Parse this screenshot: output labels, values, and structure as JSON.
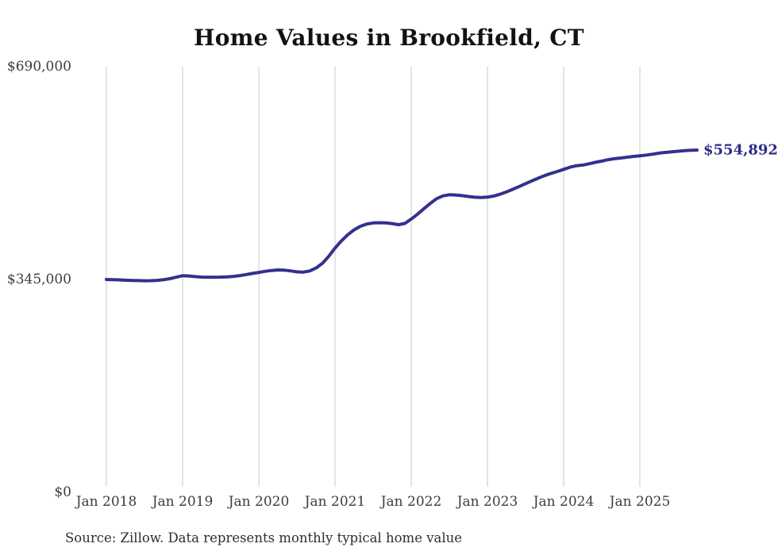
{
  "page": {
    "background_color": "#ffffff",
    "text_color": "#3d3d3d"
  },
  "chart_data": {
    "type": "line",
    "title": "Home Values in Brookfield, CT",
    "series_name": "Monthly typical home value",
    "x_unit": "month",
    "start_month": "2018-01",
    "end_month": "2025-10",
    "xlabel": "",
    "ylabel": "",
    "ylim": [
      0,
      690000
    ],
    "grid": "vertical-only",
    "legend": "none",
    "line_color": "#34308e",
    "gridline_color": "#c9c9c9",
    "end_label": "$554,892",
    "end_label_color": "#2d2b87",
    "end_value": 554892,
    "y_ticks": [
      {
        "label": "$0",
        "value": 0
      },
      {
        "label": "$345,000",
        "value": 345000
      },
      {
        "label": "$690,000",
        "value": 690000
      }
    ],
    "x_ticks": [
      {
        "label": "Jan 2018",
        "month_index": 0
      },
      {
        "label": "Jan 2019",
        "month_index": 12
      },
      {
        "label": "Jan 2020",
        "month_index": 24
      },
      {
        "label": "Jan 2021",
        "month_index": 36
      },
      {
        "label": "Jan 2022",
        "month_index": 48
      },
      {
        "label": "Jan 2023",
        "month_index": 60
      },
      {
        "label": "Jan 2024",
        "month_index": 72
      },
      {
        "label": "Jan 2025",
        "month_index": 84
      }
    ],
    "values": [
      345000,
      344700,
      344300,
      343900,
      343500,
      343200,
      343000,
      343100,
      343600,
      344600,
      346300,
      348700,
      351000,
      350600,
      349600,
      348900,
      348700,
      348700,
      348800,
      349200,
      350000,
      351300,
      353000,
      354800,
      356500,
      358200,
      359600,
      360400,
      360200,
      358900,
      357400,
      357000,
      358800,
      363500,
      371000,
      382500,
      396000,
      407500,
      417500,
      425500,
      431300,
      434900,
      436600,
      437000,
      436800,
      435600,
      433800,
      435900,
      443000,
      451000,
      459800,
      468500,
      476000,
      480600,
      482300,
      482000,
      480900,
      479500,
      478400,
      477900,
      478500,
      480300,
      483200,
      487000,
      491300,
      495800,
      500400,
      504900,
      509300,
      513400,
      517000,
      520100,
      523500,
      527000,
      529500,
      530500,
      532500,
      535000,
      537000,
      539300,
      540800,
      542000,
      543300,
      544500,
      545600,
      546700,
      548200,
      549800,
      551000,
      552000,
      552900,
      553800,
      554400,
      554892
    ]
  },
  "source": {
    "text": "Source: Zillow. Data represents monthly typical home value"
  }
}
